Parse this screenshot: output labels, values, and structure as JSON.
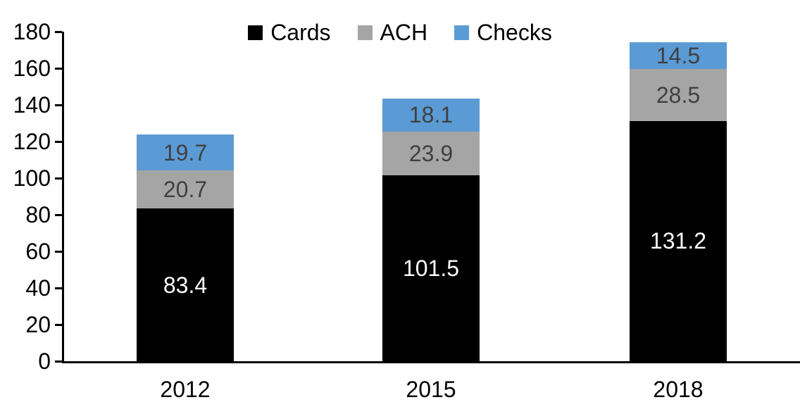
{
  "chart_data": {
    "type": "bar",
    "stacked": true,
    "title": "",
    "xlabel": "",
    "ylabel": "",
    "categories": [
      "2012",
      "2015",
      "2018"
    ],
    "series": [
      {
        "name": "Cards",
        "color": "#000000",
        "label_color": "#ffffff",
        "values": [
          83.4,
          101.5,
          131.2
        ]
      },
      {
        "name": "ACH",
        "color": "#a5a5a5",
        "label_color": "#404040",
        "values": [
          20.7,
          23.9,
          28.5
        ]
      },
      {
        "name": "Checks",
        "color": "#5b9bd5",
        "label_color": "#404040",
        "values": [
          19.7,
          18.1,
          14.5
        ]
      }
    ],
    "ylim": [
      0,
      180
    ],
    "yticks": [
      0,
      20,
      40,
      60,
      80,
      100,
      120,
      140,
      160,
      180
    ],
    "grid": false,
    "legend_position": "top-center",
    "axis_color": "#000000",
    "background_color": "#ffffff"
  }
}
